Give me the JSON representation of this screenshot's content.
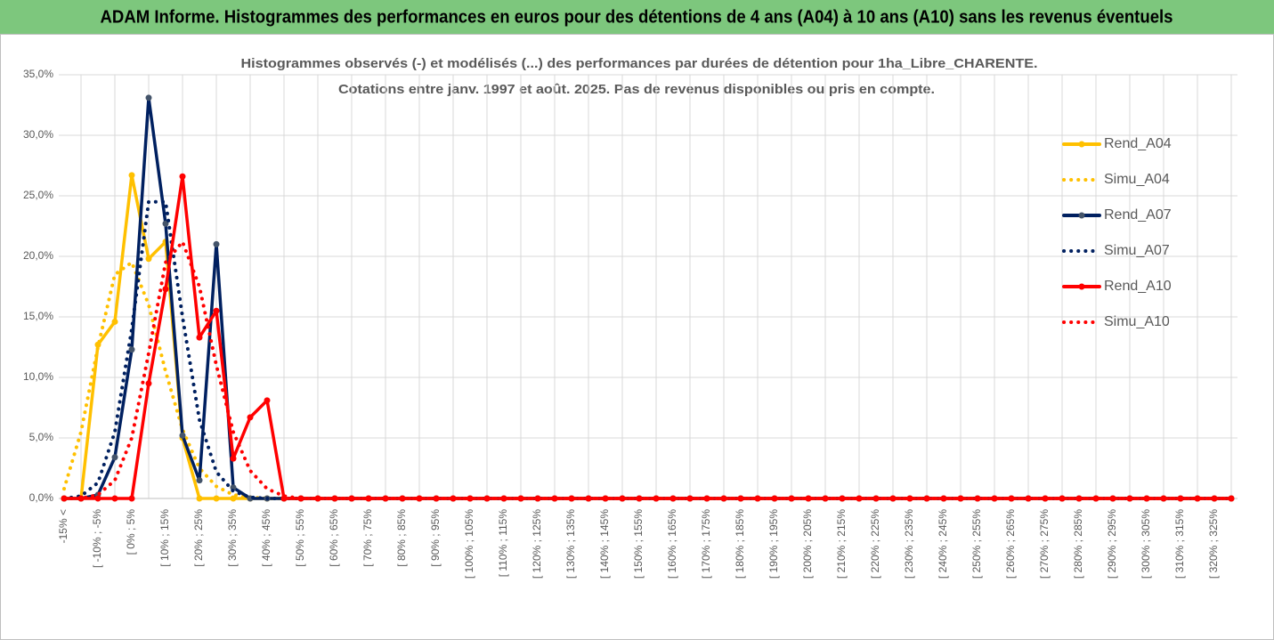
{
  "chart_data": {
    "type": "line",
    "title": "ADAM Informe. Histogrammes des performances en euros pour des détentions de 4 ans (A04) à 10 ans (A10) sans les revenus éventuels",
    "subtitle": [
      "Histogrammes observés (-) et modélisés (...) des performances par durées de détention pour 1ha_Libre_CHARENTE.",
      "Cotations entre janv. 1997 et août. 2025. Pas de revenus disponibles ou pris en compte."
    ],
    "categories": [
      "-15% <",
      null,
      "[ -10% ; -5%",
      null,
      "[ 0% ; 5%",
      null,
      "[ 10% ; 15%",
      null,
      "[ 20% ; 25%",
      null,
      "[ 30% ; 35%",
      null,
      "[ 40% ; 45%",
      null,
      "[ 50% ; 55%",
      null,
      "[ 60% ; 65%",
      null,
      "[ 70% ; 75%",
      null,
      "[ 80% ; 85%",
      null,
      "[ 90% ; 95%",
      null,
      "[ 100% ; 105%",
      null,
      "[ 110% ; 115%",
      null,
      "[ 120% ; 125%",
      null,
      "[ 130% ; 135%",
      null,
      "[ 140% ; 145%",
      null,
      "[ 150% ; 155%",
      null,
      "[ 160% ; 165%",
      null,
      "[ 170% ; 175%",
      null,
      "[ 180% ; 185%",
      null,
      "[ 190% ; 195%",
      null,
      "[ 200% ; 205%",
      null,
      "[ 210% ; 215%",
      null,
      "[ 220% ; 225%",
      null,
      "[ 230% ; 235%",
      null,
      "[ 240% ; 245%",
      null,
      "[ 250% ; 255%",
      null,
      "[ 260% ; 265%",
      null,
      "[ 270% ; 275%",
      null,
      "[ 280% ; 285%",
      null,
      "[ 290% ; 295%",
      null,
      "[ 300% ; 305%",
      null,
      "[ 310% ; 315%",
      null,
      "[ 320% ; 325%",
      null
    ],
    "series": [
      {
        "name": "Rend_A04",
        "color": "#ffc000",
        "style": "solid",
        "markers": true,
        "values": [
          0,
          0,
          12.7,
          14.6,
          26.7,
          19.8,
          21.2,
          5.0,
          0,
          0,
          0,
          0,
          0,
          0,
          0,
          0,
          0,
          0,
          0,
          0,
          0,
          0,
          0,
          0,
          0,
          0,
          0,
          0,
          0,
          0,
          0,
          0,
          0,
          0,
          0,
          0,
          0,
          0,
          0,
          0,
          0,
          0,
          0,
          0,
          0,
          0,
          0,
          0,
          0,
          0,
          0,
          0,
          0,
          0,
          0,
          0,
          0,
          0,
          0,
          0,
          0,
          0,
          0,
          0,
          0,
          0,
          0,
          0,
          0,
          0
        ]
      },
      {
        "name": "Simu_A04",
        "color": "#ffc000",
        "style": "dotted",
        "markers": false,
        "values": [
          0.8,
          5.5,
          12.5,
          18.5,
          19.5,
          16,
          10.5,
          5.7,
          2.5,
          1.0,
          0.3,
          0.1,
          0,
          0,
          0,
          0,
          0,
          0,
          0,
          0,
          0,
          0,
          0,
          0,
          0,
          0,
          0,
          0,
          0,
          0,
          0,
          0,
          0,
          0,
          0,
          0,
          0,
          0,
          0,
          0,
          0,
          0,
          0,
          0,
          0,
          0,
          0,
          0,
          0,
          0,
          0,
          0,
          0,
          0,
          0,
          0,
          0,
          0,
          0,
          0,
          0,
          0,
          0,
          0,
          0,
          0,
          0,
          0,
          0,
          0
        ]
      },
      {
        "name": "Rend_A07",
        "color": "#002060",
        "style": "solid",
        "markers": true,
        "values": [
          0,
          0,
          0.3,
          3.4,
          12.3,
          33.1,
          22.7,
          5.2,
          1.5,
          21.0,
          0.9,
          0,
          0,
          0,
          0,
          0,
          0,
          0,
          0,
          0,
          0,
          0,
          0,
          0,
          0,
          0,
          0,
          0,
          0,
          0,
          0,
          0,
          0,
          0,
          0,
          0,
          0,
          0,
          0,
          0,
          0,
          0,
          0,
          0,
          0,
          0,
          0,
          0,
          0,
          0,
          0,
          0,
          0,
          0,
          0,
          0,
          0,
          0,
          0,
          0,
          0,
          0,
          0,
          0,
          0,
          0,
          0,
          0,
          0,
          0
        ]
      },
      {
        "name": "Simu_A07",
        "color": "#002060",
        "style": "dotted",
        "markers": false,
        "values": [
          0,
          0.2,
          1.3,
          5.5,
          14,
          24.5,
          24.5,
          15,
          6.5,
          2.2,
          0.6,
          0.1,
          0,
          0,
          0,
          0,
          0,
          0,
          0,
          0,
          0,
          0,
          0,
          0,
          0,
          0,
          0,
          0,
          0,
          0,
          0,
          0,
          0,
          0,
          0,
          0,
          0,
          0,
          0,
          0,
          0,
          0,
          0,
          0,
          0,
          0,
          0,
          0,
          0,
          0,
          0,
          0,
          0,
          0,
          0,
          0,
          0,
          0,
          0,
          0,
          0,
          0,
          0,
          0,
          0,
          0,
          0,
          0,
          0,
          0
        ]
      },
      {
        "name": "Rend_A10",
        "color": "#ff0000",
        "style": "solid",
        "markers": true,
        "values": [
          0,
          0,
          0,
          0,
          0,
          9.5,
          17.3,
          26.6,
          13.3,
          15.5,
          3.3,
          6.7,
          8.1,
          0,
          0,
          0,
          0,
          0,
          0,
          0,
          0,
          0,
          0,
          0,
          0,
          0,
          0,
          0,
          0,
          0,
          0,
          0,
          0,
          0,
          0,
          0,
          0,
          0,
          0,
          0,
          0,
          0,
          0,
          0,
          0,
          0,
          0,
          0,
          0,
          0,
          0,
          0,
          0,
          0,
          0,
          0,
          0,
          0,
          0,
          0,
          0,
          0,
          0,
          0,
          0,
          0,
          0,
          0,
          0,
          0
        ]
      },
      {
        "name": "Simu_A10",
        "color": "#ff0000",
        "style": "dotted",
        "markers": false,
        "values": [
          0,
          0,
          0.3,
          1.5,
          5,
          12,
          19.5,
          21.2,
          17.5,
          11,
          5.5,
          2.3,
          0.8,
          0.2,
          0,
          0,
          0,
          0,
          0,
          0,
          0,
          0,
          0,
          0,
          0,
          0,
          0,
          0,
          0,
          0,
          0,
          0,
          0,
          0,
          0,
          0,
          0,
          0,
          0,
          0,
          0,
          0,
          0,
          0,
          0,
          0,
          0,
          0,
          0,
          0,
          0,
          0,
          0,
          0,
          0,
          0,
          0,
          0,
          0,
          0,
          0,
          0,
          0,
          0,
          0,
          0,
          0,
          0,
          0,
          0
        ]
      }
    ],
    "ylim": [
      0,
      35
    ],
    "yticks": [
      {
        "value": 0,
        "label": "0,0%"
      },
      {
        "value": 5,
        "label": "5,0%"
      },
      {
        "value": 10,
        "label": "10,0%"
      },
      {
        "value": 15,
        "label": "15,0%"
      },
      {
        "value": 20,
        "label": "20,0%"
      },
      {
        "value": 25,
        "label": "25,0%"
      },
      {
        "value": 30,
        "label": "30,0%"
      },
      {
        "value": 35,
        "label": "35,0%"
      }
    ],
    "grid": true,
    "legend": "right",
    "banner_color": "#7dc77d"
  }
}
